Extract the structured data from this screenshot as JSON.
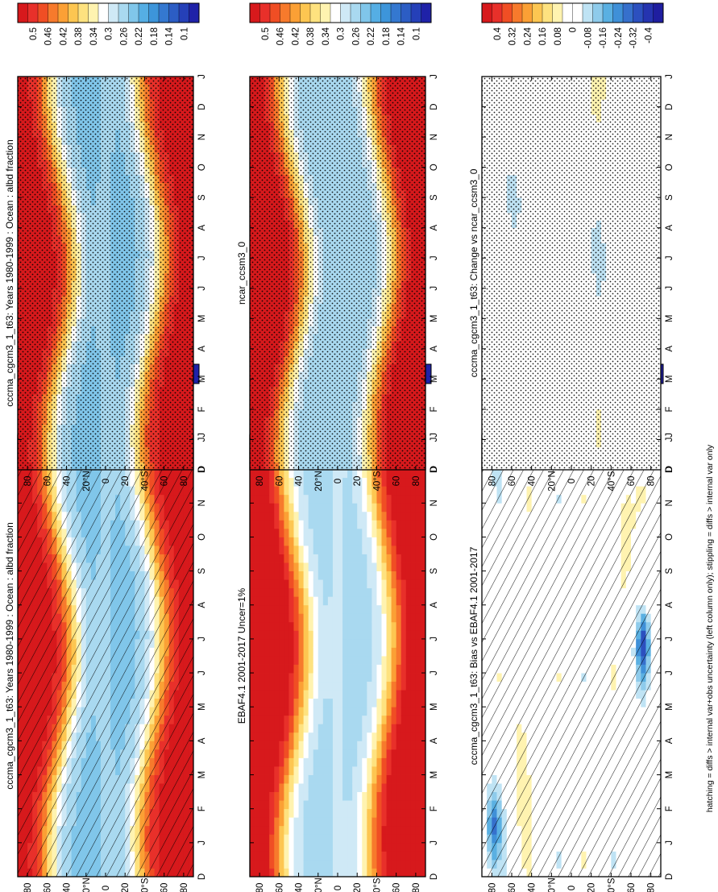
{
  "footnote": "hatching = diffs > internal var+obs uncertainty (left column only); stippling = diffs > internal var only",
  "lat_ticks": [
    "80",
    "60",
    "40",
    "20°N",
    "0",
    "20",
    "40°S",
    "60",
    "80"
  ],
  "month_ticks": [
    "D",
    "J",
    "F",
    "M",
    "A",
    "M",
    "J",
    "J",
    "A",
    "S",
    "O",
    "N",
    "D",
    "J"
  ],
  "palettes": {
    "field": [
      "#d7191c",
      "#e8302a",
      "#f04e24",
      "#f77a2c",
      "#fba035",
      "#fdc651",
      "#fee27f",
      "#fff3b0",
      "#ffffff",
      "#cfe9f6",
      "#a9d9f0",
      "#80c6ea",
      "#55aee4",
      "#3d95da",
      "#3478d0",
      "#2c5dc4",
      "#2540b8",
      "#1f22a8"
    ],
    "diff": [
      "#d7191c",
      "#e8302a",
      "#f04e24",
      "#f77a2c",
      "#fba035",
      "#fdc651",
      "#fee27f",
      "#fff3b0",
      "#ffffff",
      "#ffffff",
      "#bfe3f4",
      "#8ecbeb",
      "#5ab0e2",
      "#3f90d8",
      "#3670cc",
      "#2c50bf",
      "#2534b0",
      "#1f1ea0"
    ]
  },
  "chart_data": [
    {
      "type": "heatmap",
      "panel": "model-left",
      "title": "cccma_cgcm3_1_t63: Years 1980-1999 : Ocean : albd fraction",
      "cbar": [
        "0.5",
        "0.46",
        "0.42",
        "0.38",
        "0.34",
        "0.3",
        "0.26",
        "0.22",
        "0.18",
        "0.14",
        "0.1"
      ],
      "palette": "field",
      "overlay": "hatch",
      "field": "albedo",
      "shift": 0
    },
    {
      "type": "heatmap",
      "panel": "model-right",
      "title": "cccma_cgcm3_1_t63: Years 1980-1999 : Ocean : albd fraction",
      "cbar": [
        "0.5",
        "0.46",
        "0.42",
        "0.38",
        "0.34",
        "0.3",
        "0.26",
        "0.22",
        "0.18",
        "0.14",
        "0.1"
      ],
      "palette": "field",
      "overlay": "stipple",
      "field": "albedo",
      "shift": 0
    },
    {
      "type": "heatmap",
      "panel": "obs",
      "title": "EBAF4.1 2001-2017 Uncer=1%",
      "cbar": [
        "0.5",
        "0.46",
        "0.42",
        "0.38",
        "0.34",
        "0.3",
        "0.26",
        "0.22",
        "0.18",
        "0.14",
        "0.1"
      ],
      "palette": "field",
      "overlay": "none",
      "field": "albedo",
      "shift": 0.02
    },
    {
      "type": "heatmap",
      "panel": "ref-model",
      "title": "ncar_ccsm3_0",
      "cbar": [
        "0.5",
        "0.46",
        "0.42",
        "0.38",
        "0.34",
        "0.3",
        "0.26",
        "0.22",
        "0.18",
        "0.14",
        "0.1"
      ],
      "palette": "field",
      "overlay": "stipple",
      "field": "albedo",
      "shift": 0.01
    },
    {
      "type": "heatmap",
      "panel": "bias",
      "title": "cccma_cgcm3_1_t63: Bias vs EBAF4.1 2001-2017",
      "cbar": [
        "0.4",
        "0.32",
        "0.24",
        "0.16",
        "0.08",
        "0",
        "-0.08",
        "-0.16",
        "-0.24",
        "-0.32",
        "-0.4"
      ],
      "palette": "diff",
      "overlay": "hatch",
      "field": "bias",
      "shift": 0
    },
    {
      "type": "heatmap",
      "panel": "change",
      "title": "cccma_cgcm3_1_t63: Change vs ncar_ccsm3_0",
      "cbar": [
        "0.4",
        "0.32",
        "0.24",
        "0.16",
        "0.08",
        "0",
        "-0.08",
        "-0.16",
        "-0.24",
        "-0.32",
        "-0.4"
      ],
      "palette": "diff",
      "overlay": "stipple",
      "field": "change",
      "shift": 0
    }
  ]
}
